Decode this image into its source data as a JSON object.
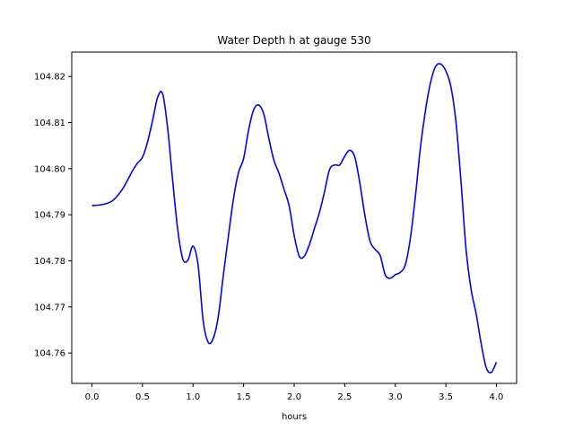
{
  "chart_data": {
    "type": "line",
    "title": "Water Depth h at gauge 530",
    "xlabel": "hours",
    "ylabel": "",
    "xlim": [
      -0.2,
      4.2
    ],
    "ylim": [
      104.7534,
      104.8253
    ],
    "x_ticks": [
      0.0,
      0.5,
      1.0,
      1.5,
      2.0,
      2.5,
      3.0,
      3.5,
      4.0
    ],
    "x_tick_labels": [
      "0.0",
      "0.5",
      "1.0",
      "1.5",
      "2.0",
      "2.5",
      "3.0",
      "3.5",
      "4.0"
    ],
    "y_ticks": [
      104.76,
      104.77,
      104.78,
      104.79,
      104.8,
      104.81,
      104.82
    ],
    "y_tick_labels": [
      "104.76",
      "104.77",
      "104.78",
      "104.79",
      "104.80",
      "104.81",
      "104.82"
    ],
    "grid": false,
    "series": [
      {
        "color": "#0000ff",
        "x": [
          0.0,
          0.1,
          0.2,
          0.3,
          0.4,
          0.45,
          0.5,
          0.55,
          0.6,
          0.65,
          0.7,
          0.75,
          0.8,
          0.85,
          0.9,
          0.95,
          1.0,
          1.05,
          1.1,
          1.15,
          1.2,
          1.25,
          1.3,
          1.35,
          1.4,
          1.45,
          1.5,
          1.55,
          1.6,
          1.65,
          1.7,
          1.75,
          1.8,
          1.85,
          1.9,
          1.95,
          2.0,
          2.05,
          2.1,
          2.15,
          2.2,
          2.25,
          2.3,
          2.35,
          2.4,
          2.45,
          2.5,
          2.55,
          2.6,
          2.65,
          2.7,
          2.75,
          2.8,
          2.85,
          2.9,
          2.95,
          3.0,
          3.05,
          3.1,
          3.15,
          3.2,
          3.25,
          3.3,
          3.35,
          3.4,
          3.45,
          3.5,
          3.55,
          3.6,
          3.65,
          3.7,
          3.75,
          3.8,
          3.85,
          3.9,
          3.95,
          4.0
        ],
        "y": [
          104.792,
          104.7922,
          104.793,
          104.7955,
          104.7995,
          104.8012,
          104.8025,
          104.8058,
          104.8105,
          104.8155,
          104.8162,
          104.8085,
          104.797,
          104.7865,
          104.7803,
          104.7802,
          104.7832,
          104.779,
          104.767,
          104.7623,
          104.7632,
          104.768,
          104.777,
          104.7855,
          104.7935,
          104.7992,
          104.8022,
          104.8085,
          104.8128,
          104.8138,
          104.8118,
          104.8065,
          104.8018,
          104.799,
          104.7955,
          104.792,
          104.7855,
          104.781,
          104.781,
          104.7835,
          104.787,
          104.7905,
          104.795,
          104.7998,
          104.8008,
          104.8008,
          104.8027,
          104.804,
          104.8025,
          104.7968,
          104.7898,
          104.7843,
          104.7825,
          104.7812,
          104.777,
          104.7762,
          104.777,
          104.7775,
          104.7792,
          104.785,
          104.7942,
          104.8048,
          104.8128,
          104.8188,
          104.8222,
          104.8227,
          104.8212,
          104.8178,
          104.8102,
          104.7972,
          104.7825,
          104.7738,
          104.7685,
          104.762,
          104.7568,
          104.7558,
          104.758
        ]
      }
    ]
  }
}
